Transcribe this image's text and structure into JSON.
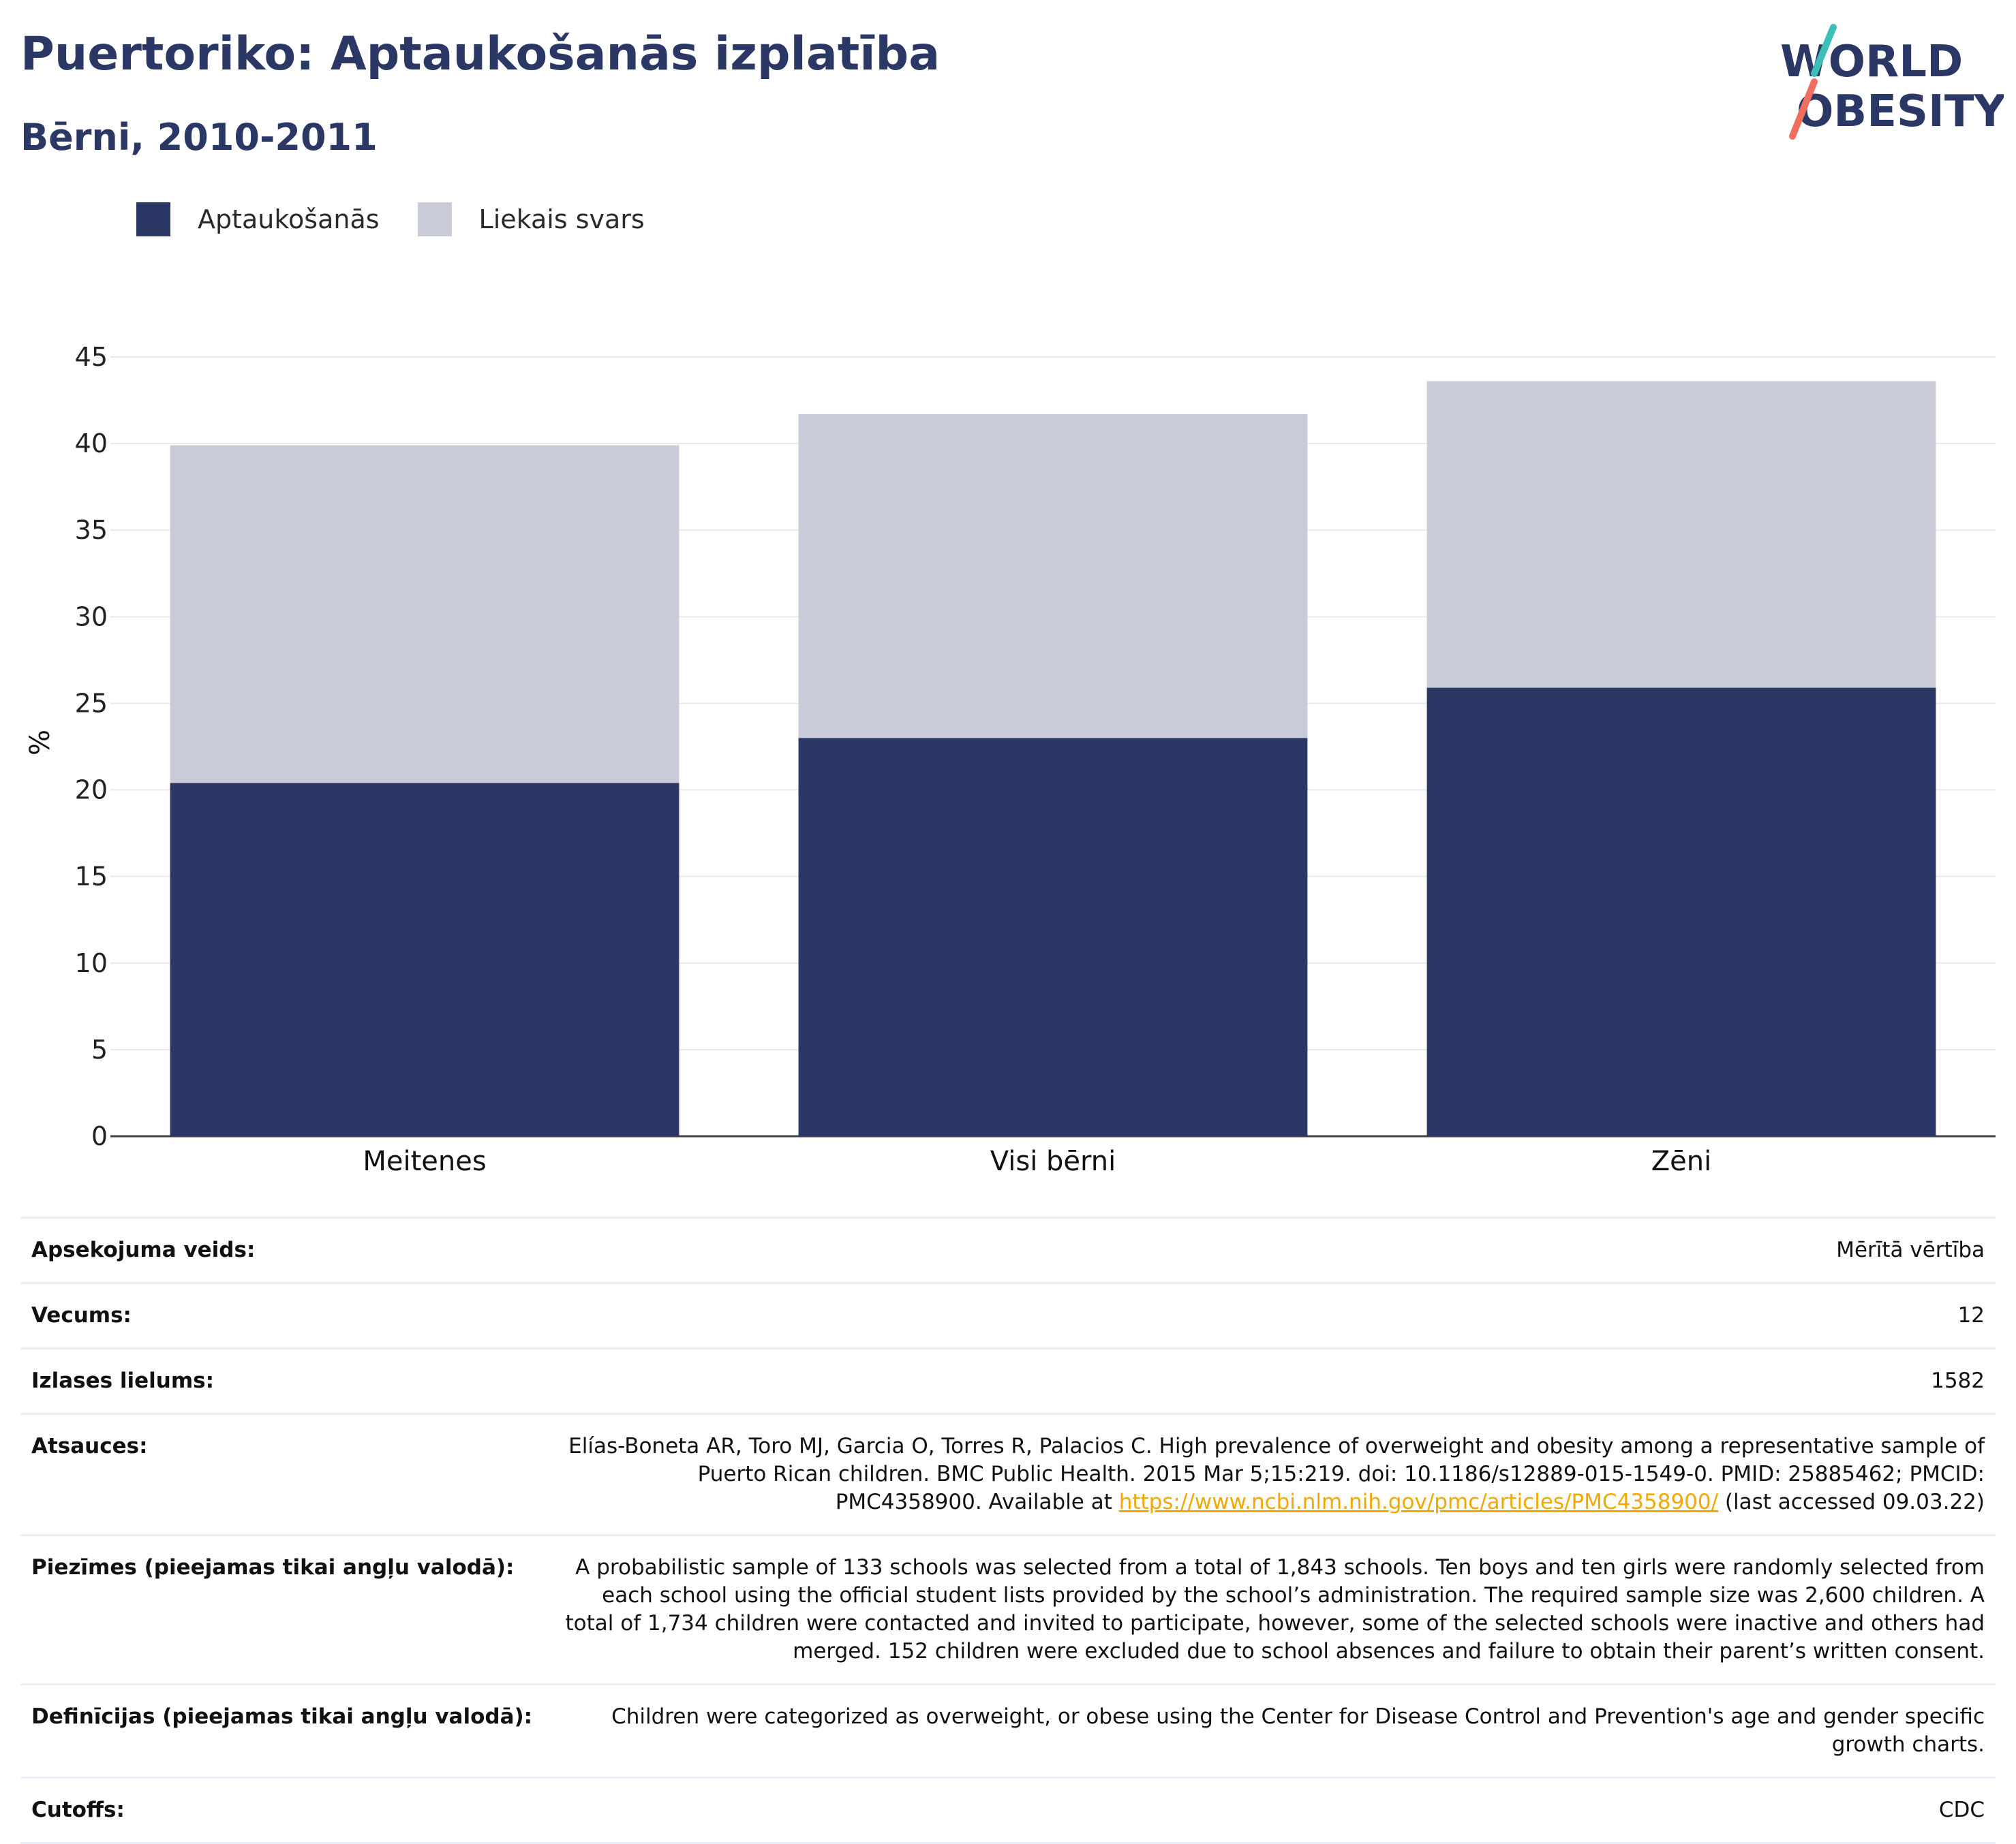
{
  "title": "Puertoriko: Aptaukošanās izplatība",
  "subtitle": "Bērni, 2010-2011",
  "logo": {
    "line1": "WORLD",
    "line2": "OBESITY"
  },
  "colors": {
    "obesity": "#2b3764",
    "overweight": "#c9ccd8",
    "title": "#2b3764",
    "link": "#f2a800"
  },
  "chart_data": {
    "type": "bar",
    "stacked": true,
    "categories": [
      "Meitenes",
      "Visi bērni",
      "Zēni"
    ],
    "series": [
      {
        "name": "Aptaukošanās",
        "values": [
          20.4,
          23.0,
          25.9
        ]
      },
      {
        "name": "Liekais svars",
        "values": [
          19.5,
          18.7,
          17.7
        ]
      }
    ],
    "ylabel": "%",
    "ylim": [
      0,
      45
    ],
    "yticks": [
      0,
      5,
      10,
      15,
      20,
      25,
      30,
      35,
      40,
      45
    ],
    "grid": true,
    "legend_position": "top-left"
  },
  "info": {
    "survey_type": {
      "label": "Apsekojuma veids:",
      "value": "Mērītā vērtība"
    },
    "age": {
      "label": "Vecums:",
      "value": "12"
    },
    "sample": {
      "label": "Izlases lielums:",
      "value": "1582"
    },
    "references": {
      "label": "Atsauces:",
      "text_before": "Elías-Boneta AR, Toro MJ, Garcia O, Torres R, Palacios C. High prevalence of overweight and obesity among a representative sample of Puerto Rican children. BMC Public Health. 2015 Mar 5;15:219. doi: 10.1186/s12889-015-1549-0. PMID: 25885462; PMCID: PMC4358900. Available at ",
      "link": "https://www.ncbi.nlm.nih.gov/pmc/articles/PMC4358900/",
      "text_after": " (last accessed 09.03.22)"
    },
    "notes": {
      "label": "Piezīmes (pieejamas tikai angļu valodā):",
      "value": "A probabilistic sample of 133 schools was selected from a total of 1,843 schools. Ten boys and ten girls were randomly selected from each school using the official student lists provided by the school’s administration. The required sample size was 2,600 children. A total of 1,734 children were contacted and invited to participate, however, some of the selected schools were inactive and others had merged. 152 children were excluded due to school absences and failure to obtain their parent’s written consent."
    },
    "definitions": {
      "label": "Definīcijas (pieejamas tikai angļu valodā):",
      "value": "Children were categorized as overweight, or obese using the Center for Disease Control and Prevention's age and gender specific growth charts."
    },
    "cutoffs": {
      "label": "Cutoffs:",
      "value": "CDC"
    }
  }
}
